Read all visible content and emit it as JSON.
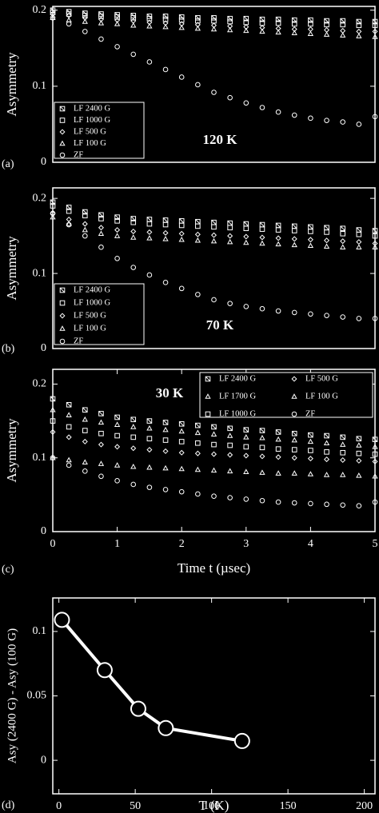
{
  "chart_data": [
    {
      "type": "scatter",
      "panel_label": "(a)",
      "annotation": "120 K",
      "y_label": "Asymmetry",
      "x": [
        0,
        0.25,
        0.5,
        0.75,
        1,
        1.25,
        1.5,
        1.75,
        2,
        2.25,
        2.5,
        2.75,
        3,
        3.25,
        3.5,
        3.75,
        4,
        4.25,
        4.5,
        4.75,
        5
      ],
      "xlim": [
        0,
        5
      ],
      "ylim": [
        0,
        0.205
      ],
      "yticks": [
        0,
        0.1,
        0.2
      ],
      "series": [
        {
          "name": "LF 2400 G",
          "color": "#ffffff",
          "marker": "square-x",
          "values": [
            0.2,
            0.198,
            0.196,
            0.195,
            0.194,
            0.193,
            0.192,
            0.192,
            0.191,
            0.19,
            0.19,
            0.189,
            0.189,
            0.188,
            0.188,
            0.187,
            0.187,
            0.186,
            0.186,
            0.185,
            0.185
          ]
        },
        {
          "name": "LF 1000 G",
          "color": "#ffffff",
          "marker": "square",
          "values": [
            0.197,
            0.195,
            0.193,
            0.192,
            0.191,
            0.19,
            0.189,
            0.188,
            0.187,
            0.186,
            0.186,
            0.185,
            0.184,
            0.183,
            0.183,
            0.182,
            0.182,
            0.181,
            0.181,
            0.18,
            0.18
          ]
        },
        {
          "name": "LF 500 G",
          "color": "#ffffff",
          "marker": "diamond",
          "values": [
            0.195,
            0.193,
            0.19,
            0.188,
            0.187,
            0.186,
            0.184,
            0.183,
            0.182,
            0.181,
            0.18,
            0.179,
            0.178,
            0.177,
            0.176,
            0.175,
            0.175,
            0.174,
            0.173,
            0.172,
            0.172
          ]
        },
        {
          "name": "LF 100 G",
          "color": "#ffffff",
          "marker": "triangle",
          "values": [
            0.19,
            0.187,
            0.185,
            0.183,
            0.182,
            0.18,
            0.179,
            0.178,
            0.177,
            0.176,
            0.175,
            0.174,
            0.173,
            0.172,
            0.171,
            0.17,
            0.169,
            0.168,
            0.167,
            0.166,
            0.165
          ]
        },
        {
          "name": "ZF",
          "color": "#ffffff",
          "marker": "circle",
          "values": [
            0.19,
            0.182,
            0.172,
            0.162,
            0.152,
            0.142,
            0.132,
            0.122,
            0.112,
            0.102,
            0.092,
            0.085,
            0.078,
            0.072,
            0.066,
            0.062,
            0.058,
            0.055,
            0.053,
            0.05,
            0.06
          ]
        }
      ]
    },
    {
      "type": "scatter",
      "panel_label": "(b)",
      "annotation": "70 K",
      "y_label": "Asymmetry",
      "x": [
        0,
        0.25,
        0.5,
        0.75,
        1,
        1.25,
        1.5,
        1.75,
        2,
        2.25,
        2.5,
        2.75,
        3,
        3.25,
        3.5,
        3.75,
        4,
        4.25,
        4.5,
        4.75,
        5
      ],
      "xlim": [
        0,
        5
      ],
      "ylim": [
        0,
        0.214
      ],
      "yticks": [
        0,
        0.1,
        0.2
      ],
      "series": [
        {
          "name": "LF 2400 G",
          "color": "#ffffff",
          "marker": "square-x",
          "values": [
            0.195,
            0.188,
            0.182,
            0.178,
            0.175,
            0.173,
            0.172,
            0.171,
            0.17,
            0.169,
            0.168,
            0.167,
            0.166,
            0.165,
            0.164,
            0.163,
            0.162,
            0.161,
            0.16,
            0.158,
            0.157
          ]
        },
        {
          "name": "LF 1000 G",
          "color": "#ffffff",
          "marker": "square",
          "values": [
            0.19,
            0.183,
            0.177,
            0.173,
            0.17,
            0.168,
            0.166,
            0.165,
            0.164,
            0.163,
            0.162,
            0.161,
            0.16,
            0.159,
            0.158,
            0.157,
            0.156,
            0.155,
            0.153,
            0.152,
            0.15
          ]
        },
        {
          "name": "LF 500 G",
          "color": "#ffffff",
          "marker": "diamond",
          "values": [
            0.18,
            0.172,
            0.166,
            0.161,
            0.158,
            0.156,
            0.155,
            0.154,
            0.153,
            0.152,
            0.151,
            0.15,
            0.149,
            0.148,
            0.147,
            0.146,
            0.145,
            0.144,
            0.143,
            0.142,
            0.14
          ]
        },
        {
          "name": "LF 100 G",
          "color": "#ffffff",
          "marker": "triangle",
          "values": [
            0.175,
            0.166,
            0.158,
            0.153,
            0.15,
            0.148,
            0.147,
            0.146,
            0.145,
            0.144,
            0.143,
            0.142,
            0.141,
            0.14,
            0.139,
            0.138,
            0.137,
            0.136,
            0.135,
            0.135,
            0.135
          ]
        },
        {
          "name": "ZF",
          "color": "#ffffff",
          "marker": "circle",
          "values": [
            0.18,
            0.165,
            0.15,
            0.135,
            0.12,
            0.108,
            0.098,
            0.088,
            0.08,
            0.072,
            0.065,
            0.06,
            0.056,
            0.053,
            0.05,
            0.048,
            0.046,
            0.044,
            0.042,
            0.04,
            0.04
          ]
        }
      ]
    },
    {
      "type": "scatter",
      "panel_label": "(c)",
      "annotation": "30 K",
      "y_label": "Asymmetry",
      "x_label": "Time t (µsec)",
      "x": [
        0,
        0.25,
        0.5,
        0.75,
        1,
        1.25,
        1.5,
        1.75,
        2,
        2.25,
        2.5,
        2.75,
        3,
        3.25,
        3.5,
        3.75,
        4,
        4.25,
        4.5,
        4.75,
        5
      ],
      "xlim": [
        0,
        5
      ],
      "xticks": [
        0,
        1,
        2,
        3,
        4,
        5
      ],
      "ylim": [
        0,
        0.22
      ],
      "yticks": [
        0,
        0.1,
        0.2
      ],
      "series": [
        {
          "name": "LF 2400 G",
          "color": "#ffffff",
          "marker": "square-x",
          "values": [
            0.18,
            0.172,
            0.165,
            0.16,
            0.155,
            0.152,
            0.15,
            0.148,
            0.146,
            0.144,
            0.142,
            0.14,
            0.138,
            0.137,
            0.135,
            0.133,
            0.131,
            0.13,
            0.128,
            0.126,
            0.125
          ]
        },
        {
          "name": "LF 1700 G",
          "color": "#ffffff",
          "marker": "triangle",
          "values": [
            0.165,
            0.158,
            0.152,
            0.148,
            0.145,
            0.142,
            0.14,
            0.138,
            0.136,
            0.134,
            0.132,
            0.13,
            0.128,
            0.127,
            0.125,
            0.124,
            0.122,
            0.12,
            0.118,
            0.117,
            0.115
          ]
        },
        {
          "name": "LF 1000 G",
          "color": "#ffffff",
          "marker": "square",
          "values": [
            0.15,
            0.142,
            0.137,
            0.133,
            0.13,
            0.128,
            0.126,
            0.124,
            0.122,
            0.12,
            0.118,
            0.117,
            0.115,
            0.114,
            0.112,
            0.111,
            0.11,
            0.108,
            0.107,
            0.106,
            0.105
          ]
        },
        {
          "name": "LF 500 G",
          "color": "#ffffff",
          "marker": "diamond",
          "values": [
            0.135,
            0.128,
            0.122,
            0.118,
            0.115,
            0.113,
            0.111,
            0.109,
            0.107,
            0.106,
            0.105,
            0.104,
            0.103,
            0.102,
            0.101,
            0.1,
            0.099,
            0.098,
            0.097,
            0.096,
            0.095
          ]
        },
        {
          "name": "LF 100 G",
          "color": "#ffffff",
          "marker": "triangle",
          "values": [
            0.1,
            0.097,
            0.094,
            0.092,
            0.09,
            0.088,
            0.087,
            0.086,
            0.085,
            0.084,
            0.083,
            0.082,
            0.081,
            0.08,
            0.079,
            0.079,
            0.078,
            0.077,
            0.077,
            0.076,
            0.075
          ]
        },
        {
          "name": "ZF",
          "color": "#ffffff",
          "marker": "circle",
          "values": [
            0.1,
            0.09,
            0.082,
            0.075,
            0.069,
            0.064,
            0.06,
            0.057,
            0.054,
            0.051,
            0.048,
            0.046,
            0.044,
            0.042,
            0.04,
            0.039,
            0.038,
            0.037,
            0.036,
            0.035,
            0.04
          ]
        }
      ]
    },
    {
      "type": "line",
      "panel_label": "(d)",
      "y_label": "Asy (2400 G) - Asy (100 G)",
      "x_label": "T (K)",
      "x": [
        2,
        30,
        52,
        70,
        120
      ],
      "xlim": [
        -4,
        207
      ],
      "xticks": [
        0,
        50,
        100,
        150,
        200
      ],
      "ylim": [
        -0.026,
        0.126
      ],
      "yticks": [
        0,
        0.05,
        0.1
      ],
      "series": [
        {
          "color": "#ffffff",
          "marker": "circle",
          "values": [
            0.109,
            0.07,
            0.04,
            0.025,
            0.015
          ]
        }
      ]
    }
  ]
}
